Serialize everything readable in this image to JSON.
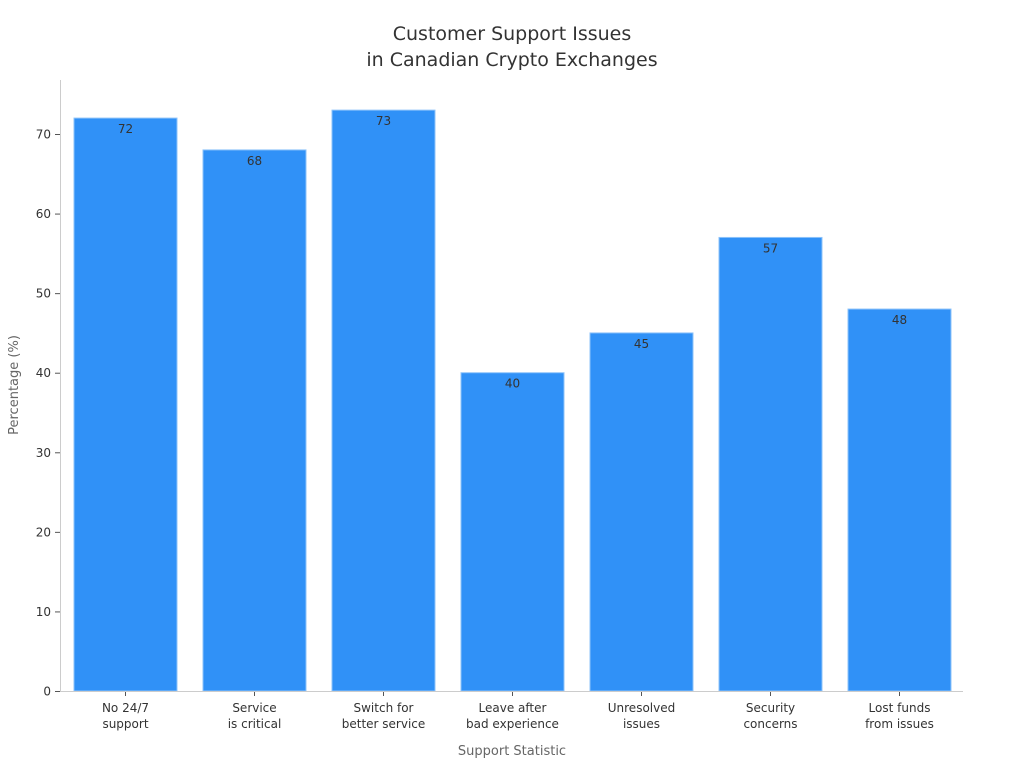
{
  "chart_data": {
    "type": "bar",
    "title": [
      "Customer Support Issues",
      "in Canadian Crypto Exchanges"
    ],
    "xlabel": "Support Statistic",
    "ylabel": "Percentage (%)",
    "categories": [
      [
        "No 24/7",
        "support"
      ],
      [
        "Service",
        "is critical"
      ],
      [
        "Switch for",
        "better service"
      ],
      [
        "Leave after",
        "bad experience"
      ],
      [
        "Unresolved",
        "issues"
      ],
      [
        "Security",
        "concerns"
      ],
      [
        "Lost funds",
        "from issues"
      ]
    ],
    "values": [
      72,
      68,
      73,
      40,
      45,
      57,
      48
    ],
    "data_labels": [
      "72",
      "68",
      "73",
      "40",
      "45",
      "57",
      "48"
    ],
    "yticks": [
      0,
      10,
      20,
      30,
      40,
      50,
      60,
      70
    ],
    "ylim": [
      0,
      76.8
    ],
    "grid": false,
    "bar_color": "#3091F7",
    "bar_edge_color": "#8EC3FA"
  }
}
